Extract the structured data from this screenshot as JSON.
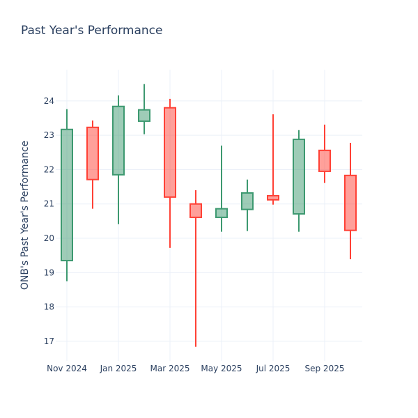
{
  "chart_data": {
    "type": "candlestick",
    "title": "Past Year's Performance",
    "xlabel": "",
    "ylabel": "ONB's Past Year's Performance",
    "x_ticks": [
      "Nov 2024",
      "Jan 2025",
      "Mar 2025",
      "May 2025",
      "Jul 2025",
      "Sep 2025"
    ],
    "y_ticks": [
      17,
      18,
      19,
      20,
      21,
      22,
      23,
      24
    ],
    "ylim": [
      16.43,
      24.91
    ],
    "grid": true,
    "colors": {
      "increasing": "#3d9970",
      "decreasing": "#ff4136"
    },
    "candles": [
      {
        "date": "2024-11",
        "open": 19.35,
        "high": 23.76,
        "low": 18.75,
        "close": 23.17
      },
      {
        "date": "2024-12",
        "open": 23.23,
        "high": 23.43,
        "low": 20.86,
        "close": 21.71
      },
      {
        "date": "2025-01",
        "open": 21.85,
        "high": 24.16,
        "low": 20.41,
        "close": 23.84
      },
      {
        "date": "2025-02",
        "open": 23.41,
        "high": 24.49,
        "low": 23.03,
        "close": 23.74
      },
      {
        "date": "2025-03",
        "open": 23.8,
        "high": 24.06,
        "low": 19.72,
        "close": 21.2
      },
      {
        "date": "2025-04",
        "open": 21.0,
        "high": 21.4,
        "low": 16.84,
        "close": 20.61
      },
      {
        "date": "2025-05",
        "open": 20.61,
        "high": 22.7,
        "low": 20.19,
        "close": 20.86
      },
      {
        "date": "2025-06",
        "open": 20.84,
        "high": 21.71,
        "low": 20.21,
        "close": 21.32
      },
      {
        "date": "2025-07",
        "open": 21.24,
        "high": 23.61,
        "low": 20.98,
        "close": 21.12
      },
      {
        "date": "2025-08",
        "open": 20.71,
        "high": 23.15,
        "low": 20.19,
        "close": 22.88
      },
      {
        "date": "2025-09",
        "open": 22.56,
        "high": 23.31,
        "low": 21.61,
        "close": 21.95
      },
      {
        "date": "2025-10",
        "open": 21.83,
        "high": 22.78,
        "low": 19.39,
        "close": 20.23
      }
    ]
  }
}
